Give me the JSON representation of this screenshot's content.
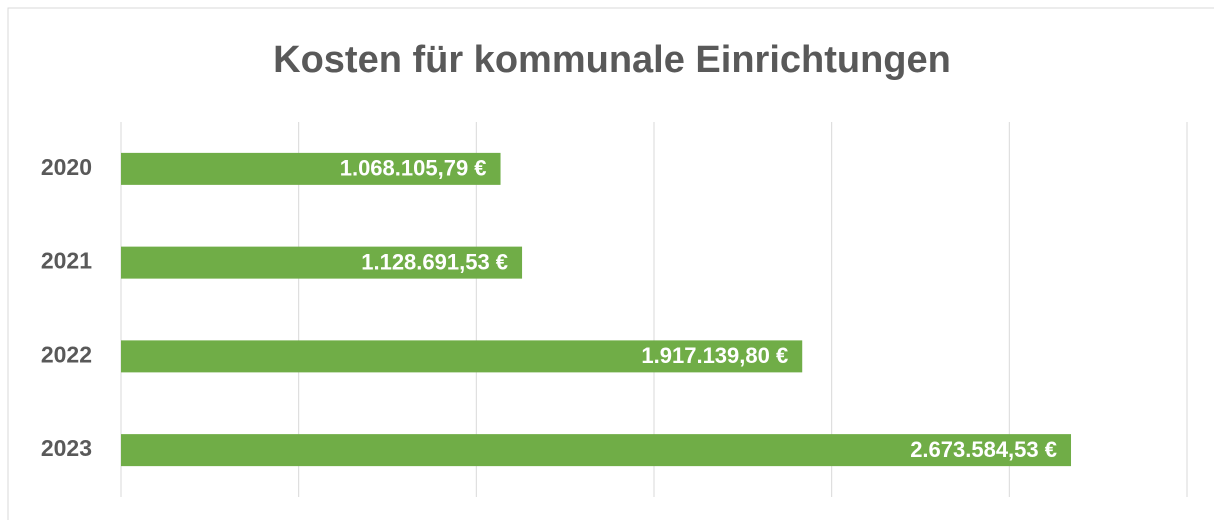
{
  "chart_data": {
    "type": "bar",
    "orientation": "horizontal",
    "title": "Kosten für kommunale Einrichtungen",
    "categories": [
      "2020",
      "2021",
      "2022",
      "2023"
    ],
    "values": [
      1068105.79,
      1128691.53,
      1917139.8,
      2673584.53
    ],
    "value_labels": [
      "1.068.105,79 €",
      "1.128.691,53 €",
      "1.917.139,80 €",
      "2.673.584,53 €"
    ],
    "color": "#70ad47",
    "xlim": [
      0,
      3000000
    ],
    "xticks": [
      0,
      500000,
      1000000,
      1500000,
      2000000,
      2500000,
      3000000
    ],
    "grid": true
  }
}
